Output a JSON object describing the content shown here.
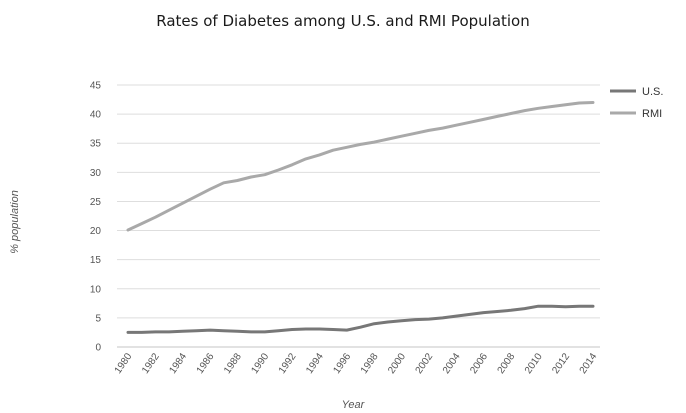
{
  "chart_data": {
    "type": "line",
    "title": "Rates of Diabetes among U.S. and RMI Population",
    "xlabel": "Year",
    "ylabel": "% population",
    "ylim": [
      0,
      45
    ],
    "y_ticks": [
      0,
      5,
      10,
      15,
      20,
      25,
      30,
      35,
      40,
      45
    ],
    "grid": true,
    "legend_position": "right",
    "x": [
      1980,
      1981,
      1982,
      1983,
      1984,
      1985,
      1986,
      1987,
      1988,
      1989,
      1990,
      1991,
      1992,
      1993,
      1994,
      1995,
      1996,
      1997,
      1998,
      1999,
      2000,
      2001,
      2002,
      2003,
      2004,
      2005,
      2006,
      2007,
      2008,
      2009,
      2010,
      2011,
      2012,
      2013,
      2014
    ],
    "x_tick_labels": [
      "1980",
      "1982",
      "1984",
      "1986",
      "1988",
      "1990",
      "1992",
      "1994",
      "1996",
      "1998",
      "2000",
      "2002",
      "2004",
      "2006",
      "2008",
      "2010",
      "2012",
      "2014"
    ],
    "series": [
      {
        "name": "U.S.",
        "color": "#777777",
        "values": [
          2.5,
          2.5,
          2.6,
          2.6,
          2.7,
          2.8,
          2.9,
          2.8,
          2.7,
          2.6,
          2.6,
          2.8,
          3.0,
          3.1,
          3.1,
          3.0,
          2.9,
          3.4,
          4.0,
          4.3,
          4.5,
          4.7,
          4.8,
          5.0,
          5.3,
          5.6,
          5.9,
          6.1,
          6.3,
          6.6,
          7.0,
          7.0,
          6.9,
          7.0,
          7.0
        ]
      },
      {
        "name": "RMI",
        "color": "#a9a9a9",
        "values": [
          20.1,
          21.2,
          22.3,
          23.5,
          24.7,
          25.9,
          27.1,
          28.2,
          28.6,
          29.2,
          29.6,
          30.4,
          31.3,
          32.3,
          33.0,
          33.8,
          34.3,
          34.8,
          35.2,
          35.7,
          36.2,
          36.7,
          37.2,
          37.6,
          38.1,
          38.6,
          39.1,
          39.6,
          40.1,
          40.6,
          41.0,
          41.3,
          41.6,
          41.9,
          42.0
        ]
      }
    ]
  }
}
